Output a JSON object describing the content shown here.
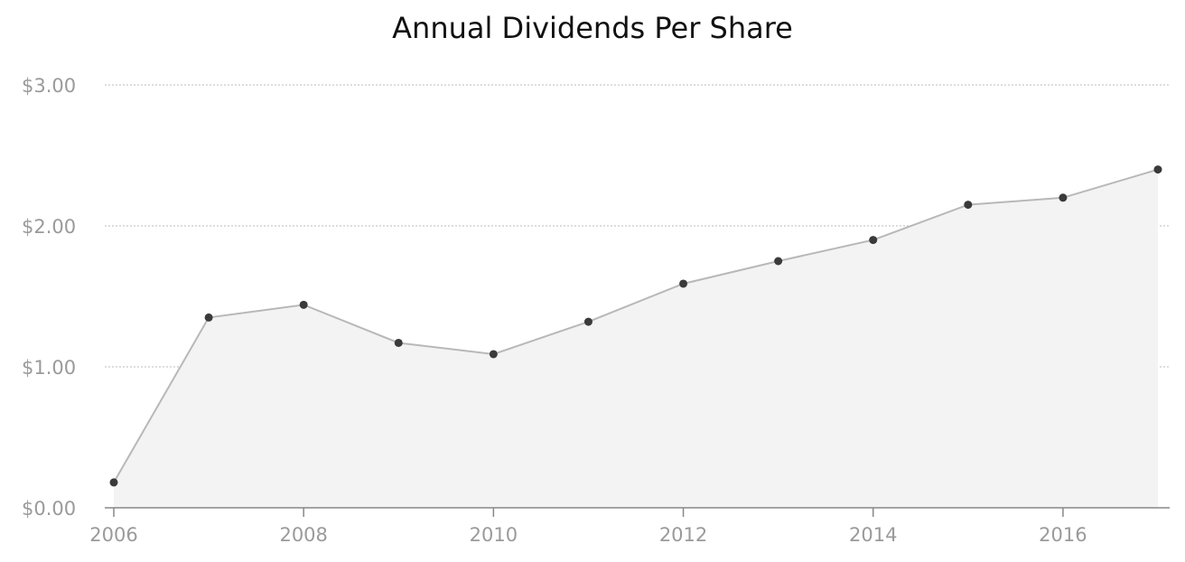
{
  "chart_data": {
    "type": "area",
    "title": "Annual Dividends Per Share",
    "xlabel": "",
    "ylabel": "",
    "x": [
      2006,
      2007,
      2008,
      2009,
      2010,
      2011,
      2012,
      2013,
      2014,
      2015,
      2016,
      2017
    ],
    "series": [
      {
        "values": [
          0.18,
          1.35,
          1.44,
          1.17,
          1.09,
          1.32,
          1.59,
          1.75,
          1.9,
          2.15,
          2.2,
          2.4
        ]
      }
    ],
    "xlim": [
      2006,
      2017
    ],
    "ylim": [
      0,
      3
    ],
    "x_ticks": [
      2006,
      2008,
      2010,
      2012,
      2014,
      2016
    ],
    "x_tick_labels": [
      "2006",
      "2008",
      "2010",
      "2012",
      "2014",
      "2016"
    ],
    "y_ticks": [
      0,
      1,
      2,
      3
    ],
    "y_tick_labels": [
      "$0.00",
      "$1.00",
      "$2.00",
      "$3.00"
    ],
    "grid": "horizontal dotted",
    "legend": "none",
    "colors": {
      "line": "#b8b8b8",
      "area": "#f3f3f3",
      "marker": "#3a3a3a",
      "grid": "#bbbbbb",
      "axis": "#888888",
      "tick_label": "#9a9a9a"
    }
  }
}
